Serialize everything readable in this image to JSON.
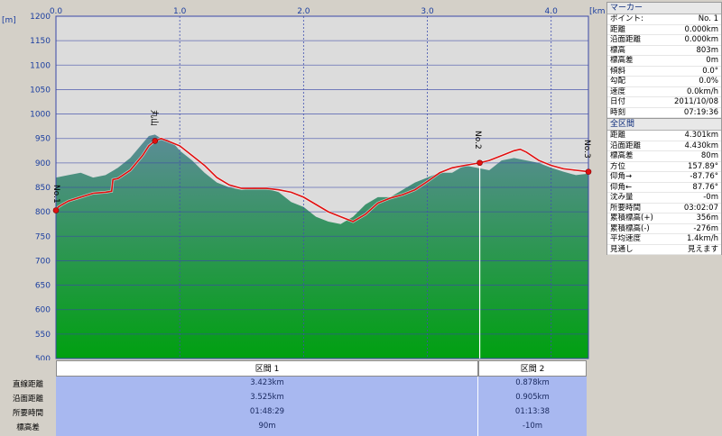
{
  "chart": {
    "y_unit": "[m]",
    "x_unit": "[km]",
    "y_ticks": [
      1200,
      1150,
      1100,
      1050,
      1000,
      950,
      900,
      850,
      800,
      750,
      700,
      650,
      600,
      550,
      500
    ],
    "x_ticks": [
      "0.0",
      "1.0",
      "2.0",
      "3.0",
      "4.0"
    ],
    "markers": [
      {
        "label": "丸山",
        "km": 0.8
      },
      {
        "label": "No.2",
        "km": 3.423
      },
      {
        "label": "No.3",
        "km": 4.301
      }
    ],
    "start_marker": "No.1"
  },
  "chart_data": {
    "type": "area",
    "title": "",
    "xlabel": "[km]",
    "ylabel": "[m]",
    "xlim": [
      0,
      4.301
    ],
    "ylim": [
      500,
      1200
    ],
    "terrain_x": [
      0,
      0.1,
      0.2,
      0.3,
      0.4,
      0.5,
      0.6,
      0.7,
      0.75,
      0.8,
      0.85,
      0.9,
      0.95,
      1.0,
      1.1,
      1.2,
      1.3,
      1.4,
      1.5,
      1.6,
      1.7,
      1.8,
      1.9,
      2.0,
      2.1,
      2.2,
      2.3,
      2.4,
      2.5,
      2.6,
      2.7,
      2.8,
      2.9,
      3.0,
      3.1,
      3.2,
      3.3,
      3.4,
      3.5,
      3.6,
      3.7,
      3.8,
      3.9,
      4.0,
      4.1,
      4.2,
      4.301
    ],
    "terrain_y": [
      870,
      875,
      880,
      870,
      875,
      890,
      910,
      940,
      955,
      958,
      950,
      948,
      940,
      925,
      905,
      880,
      860,
      850,
      845,
      850,
      848,
      840,
      820,
      810,
      790,
      780,
      775,
      790,
      815,
      830,
      830,
      845,
      860,
      870,
      880,
      880,
      895,
      890,
      885,
      905,
      910,
      905,
      900,
      890,
      882,
      875,
      878
    ],
    "route_x": [
      0,
      0.02,
      0.05,
      0.1,
      0.2,
      0.3,
      0.4,
      0.45,
      0.46,
      0.5,
      0.6,
      0.7,
      0.75,
      0.8,
      0.85,
      0.9,
      1.0,
      1.1,
      1.2,
      1.3,
      1.4,
      1.5,
      1.6,
      1.7,
      1.8,
      1.9,
      2.0,
      2.1,
      2.2,
      2.3,
      2.4,
      2.5,
      2.6,
      2.7,
      2.8,
      2.9,
      3.0,
      3.1,
      3.2,
      3.3,
      3.42,
      3.5,
      3.6,
      3.7,
      3.75,
      3.8,
      3.9,
      4.0,
      4.1,
      4.2,
      4.301
    ],
    "route_y": [
      803,
      810,
      815,
      822,
      830,
      838,
      840,
      842,
      866,
      868,
      885,
      915,
      935,
      945,
      950,
      945,
      935,
      915,
      895,
      870,
      855,
      848,
      848,
      848,
      845,
      840,
      830,
      815,
      800,
      790,
      780,
      795,
      818,
      828,
      835,
      845,
      862,
      880,
      890,
      895,
      900,
      905,
      915,
      925,
      928,
      922,
      905,
      895,
      888,
      885,
      882
    ],
    "marker_x_km": [
      0,
      0.8,
      3.423,
      4.301
    ]
  },
  "marker_panel": {
    "title": "マーカー",
    "rows": [
      {
        "k": "ポイント:",
        "v": "No. 1"
      },
      {
        "k": "距離",
        "v": "0.000km"
      },
      {
        "k": "沿面距離",
        "v": "0.000km"
      },
      {
        "k": "標高",
        "v": "803m"
      },
      {
        "k": "標高差",
        "v": "0m"
      },
      {
        "k": "傾斜",
        "v": "0.0°"
      },
      {
        "k": "勾配",
        "v": "0.0%"
      },
      {
        "k": "速度",
        "v": "0.0km/h"
      },
      {
        "k": "日付",
        "v": "2011/10/08"
      },
      {
        "k": "時刻",
        "v": "07:19:36"
      }
    ]
  },
  "total_panel": {
    "title": "全区間",
    "rows": [
      {
        "k": "距離",
        "v": "4.301km"
      },
      {
        "k": "沿面距離",
        "v": "4.430km"
      },
      {
        "k": "標高差",
        "v": "80m"
      },
      {
        "k": "方位",
        "v": "157.89°"
      },
      {
        "k": "仰角→",
        "v": "-87.76°"
      },
      {
        "k": "仰角←",
        "v": "87.76°"
      },
      {
        "k": "沈み量",
        "v": "-0m"
      },
      {
        "k": "所要時間",
        "v": "03:02:07"
      },
      {
        "k": "累積標高(+)",
        "v": "356m"
      },
      {
        "k": "累積標高(-)",
        "v": "-276m"
      },
      {
        "k": "平均速度",
        "v": "1.4km/h"
      },
      {
        "k": "見通し",
        "v": "見えます"
      }
    ]
  },
  "segments": {
    "row_labels": [
      "直線距離",
      "沿面距離",
      "所要時間",
      "標高差"
    ],
    "items": [
      {
        "name": "区間 1",
        "values": [
          "3.423km",
          "3.525km",
          "01:48:29",
          "90m"
        ]
      },
      {
        "name": "区間 2",
        "values": [
          "0.878km",
          "0.905km",
          "01:13:38",
          "-10m"
        ]
      }
    ]
  },
  "colors": {
    "route": "#e01010",
    "grid_h": "#3a48a8",
    "grid_v": "#4050b0",
    "plot_bg": "#dcdcdc",
    "terrain_top": "#5c8c98",
    "terrain_bottom": "#00a010"
  }
}
